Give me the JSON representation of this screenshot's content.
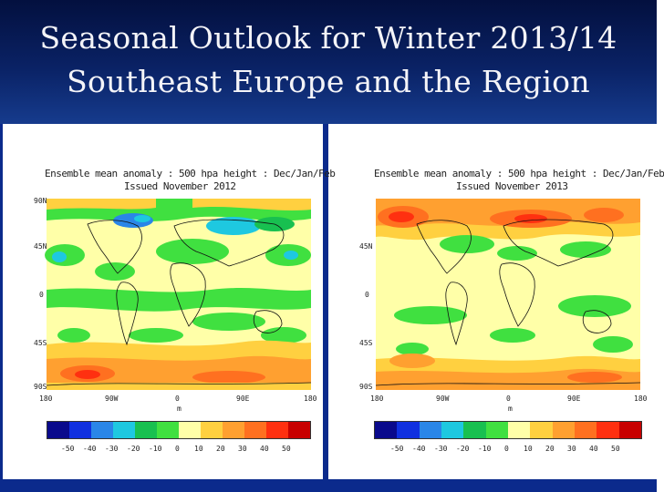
{
  "slide": {
    "title_line1": "Seasonal Outlook for Winter 2013/14",
    "title_line2": "Southeast Europe and the Region"
  },
  "panels": [
    {
      "title_line1": "Ensemble mean anomaly : 500 hpa height : Dec/Jan/Feb",
      "title_line2": "Issued November 2012",
      "y_ticks": [
        "90N",
        "45N",
        "0",
        "45S",
        "90S"
      ],
      "x_ticks": [
        "180",
        "90W",
        "0",
        "90E",
        "180"
      ],
      "x_unit": "m"
    },
    {
      "title_line1": "Ensemble mean anomaly : 500 hpa height : Dec/Jan/Feb",
      "title_line2": "Issued November 2013",
      "y_ticks": [
        "",
        "45N",
        "0",
        "45S",
        "90S"
      ],
      "x_ticks": [
        "180",
        "90W",
        "0",
        "90E",
        "180"
      ],
      "x_unit": "m"
    }
  ],
  "colorbar": {
    "labels": [
      "-50",
      "-40",
      "-30",
      "-20",
      "-10",
      "0",
      "10",
      "20",
      "30",
      "40",
      "50"
    ],
    "colors": [
      "#0a0a8c",
      "#1030e0",
      "#2a86e8",
      "#1ec8e0",
      "#18c050",
      "#40e040",
      "#ffffa8",
      "#ffd040",
      "#ffa030",
      "#ff7020",
      "#ff3010",
      "#c80000"
    ]
  }
}
